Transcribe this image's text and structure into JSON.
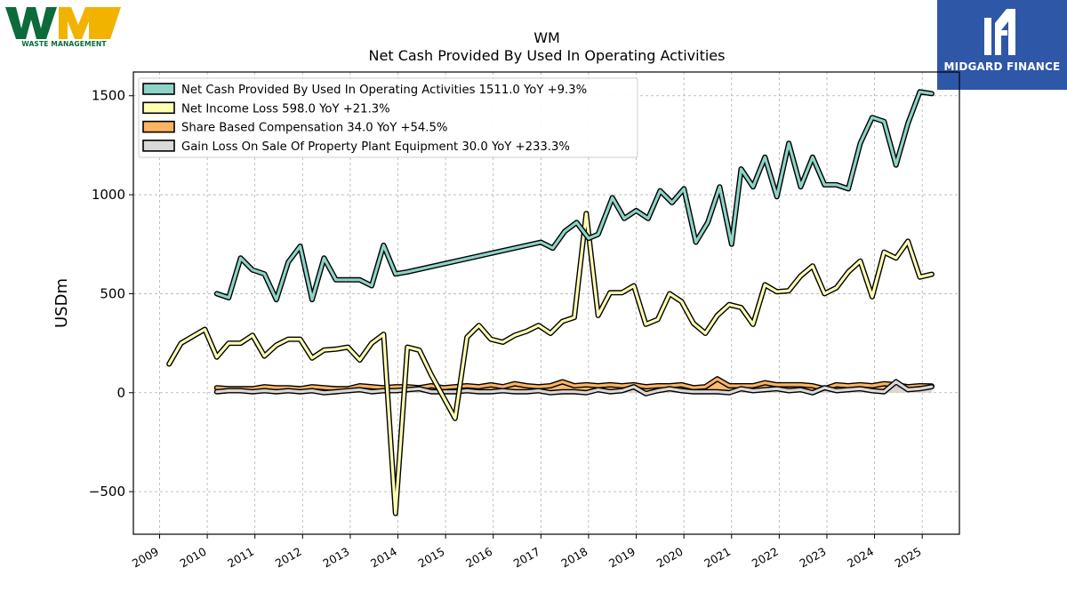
{
  "logos": {
    "left_brand": "WM",
    "left_caption": "WASTE MANAGEMENT",
    "right_caption": "MIDGARD FINANCE"
  },
  "chart_data": {
    "type": "line",
    "title": "WM",
    "subtitle": "Net Cash Provided By Used In Operating Activities",
    "xlabel": "",
    "ylabel": "USDm",
    "xlim": [
      2008.45,
      2025.78
    ],
    "ylim": [
      -715,
      1620
    ],
    "xticks": [
      "2009",
      "2010",
      "2011",
      "2012",
      "2013",
      "2014",
      "2015",
      "2016",
      "2017",
      "2018",
      "2019",
      "2020",
      "2021",
      "2022",
      "2023",
      "2024",
      "2025"
    ],
    "yticks": [
      -500,
      0,
      500,
      1000,
      1500
    ],
    "ytick_labels": [
      "−500",
      "0",
      "500",
      "1000",
      "1500"
    ],
    "grid": true,
    "legend_position": "top-left",
    "legend": [
      "Net Cash Provided By Used In Operating Activities  1511.0 YoY +9.3%",
      "Net Income Loss  598.0 YoY +21.3%",
      "Share Based Compensation  34.0 YoY +54.5%",
      "Gain Loss On Sale Of Property Plant Equipment  30.0 YoY +233.3%"
    ],
    "series": [
      {
        "name": "Net Cash Provided By Used In Operating Activities",
        "color": "#8dd3c7",
        "x": [
          2010.2,
          2010.45,
          2010.7,
          2010.95,
          2011.2,
          2011.45,
          2011.7,
          2011.95,
          2012.2,
          2012.45,
          2012.7,
          2012.95,
          2013.2,
          2013.45,
          2013.7,
          2013.95,
          2014.2,
          2017.0,
          2017.25,
          2017.5,
          2017.75,
          2018.0,
          2018.2,
          2018.5,
          2018.75,
          2019.0,
          2019.25,
          2019.5,
          2019.75,
          2020.0,
          2020.25,
          2020.5,
          2020.75,
          2021.0,
          2021.2,
          2021.45,
          2021.7,
          2021.95,
          2022.2,
          2022.45,
          2022.7,
          2022.95,
          2023.2,
          2023.45,
          2023.7,
          2023.95,
          2024.2,
          2024.45,
          2024.7,
          2024.95,
          2025.2
        ],
        "y": [
          500,
          480,
          680,
          620,
          600,
          470,
          660,
          740,
          470,
          680,
          570,
          570,
          570,
          540,
          745,
          600,
          610,
          760,
          730,
          815,
          860,
          780,
          800,
          985,
          880,
          920,
          880,
          1020,
          960,
          1030,
          760,
          860,
          1040,
          750,
          1130,
          1040,
          1190,
          990,
          1260,
          1040,
          1190,
          1050,
          1050,
          1030,
          1260,
          1390,
          1370,
          1150,
          1360,
          1520,
          1511
        ]
      },
      {
        "name": "Net Income Loss",
        "color": "#ffffb3",
        "x": [
          2009.2,
          2009.45,
          2009.7,
          2009.95,
          2010.2,
          2010.45,
          2010.7,
          2010.95,
          2011.2,
          2011.45,
          2011.7,
          2011.95,
          2012.2,
          2012.45,
          2012.7,
          2012.95,
          2013.2,
          2013.45,
          2013.7,
          2013.95,
          2014.2,
          2014.45,
          2014.7,
          2014.95,
          2015.2,
          2015.45,
          2015.7,
          2015.95,
          2016.2,
          2016.45,
          2016.7,
          2016.95,
          2017.2,
          2017.45,
          2017.7,
          2017.95,
          2018.2,
          2018.45,
          2018.7,
          2018.95,
          2019.2,
          2019.45,
          2019.7,
          2019.95,
          2020.2,
          2020.45,
          2020.7,
          2020.95,
          2021.2,
          2021.45,
          2021.7,
          2021.95,
          2022.2,
          2022.45,
          2022.7,
          2022.95,
          2023.2,
          2023.45,
          2023.7,
          2023.95,
          2024.2,
          2024.45,
          2024.7,
          2024.95,
          2025.2
        ],
        "y": [
          145,
          250,
          285,
          320,
          180,
          250,
          250,
          290,
          185,
          240,
          270,
          270,
          175,
          215,
          220,
          230,
          165,
          250,
          295,
          -610,
          230,
          215,
          90,
          -20,
          -130,
          280,
          340,
          270,
          255,
          290,
          310,
          340,
          300,
          360,
          380,
          905,
          390,
          505,
          505,
          540,
          345,
          370,
          500,
          460,
          350,
          300,
          390,
          445,
          430,
          345,
          545,
          510,
          515,
          590,
          640,
          500,
          530,
          610,
          665,
          485,
          710,
          680,
          765,
          584,
          598
        ]
      },
      {
        "name": "Share Based Compensation",
        "color": "#fdb462",
        "x": [
          2010.2,
          2010.45,
          2010.7,
          2010.95,
          2011.2,
          2011.45,
          2011.7,
          2011.95,
          2012.2,
          2012.45,
          2012.7,
          2012.95,
          2013.2,
          2013.45,
          2013.7,
          2013.95,
          2014.2,
          2014.45,
          2014.7,
          2014.95,
          2015.2,
          2015.45,
          2015.7,
          2015.95,
          2016.2,
          2016.45,
          2016.7,
          2016.95,
          2017.2,
          2017.45,
          2017.7,
          2017.95,
          2018.2,
          2018.45,
          2018.7,
          2018.95,
          2019.2,
          2019.45,
          2019.7,
          2019.95,
          2020.2,
          2020.45,
          2020.7,
          2020.95,
          2021.2,
          2021.45,
          2021.7,
          2021.95,
          2022.2,
          2022.45,
          2022.7,
          2022.95,
          2023.2,
          2023.45,
          2023.7,
          2023.95,
          2024.2,
          2024.45,
          2024.7,
          2024.95,
          2025.2
        ],
        "y": [
          25,
          20,
          20,
          20,
          30,
          25,
          25,
          20,
          30,
          25,
          20,
          20,
          35,
          30,
          25,
          30,
          30,
          25,
          35,
          25,
          30,
          35,
          30,
          40,
          30,
          45,
          35,
          30,
          35,
          55,
          35,
          40,
          35,
          40,
          35,
          40,
          30,
          35,
          35,
          40,
          25,
          30,
          70,
          35,
          35,
          35,
          50,
          40,
          40,
          40,
          35,
          20,
          40,
          35,
          40,
          35,
          45,
          40,
          30,
          35,
          34
        ]
      },
      {
        "name": "Gain Loss On Sale Of Property Plant Equipment",
        "color": "#d9d9d9",
        "x": [
          2010.2,
          2010.45,
          2010.7,
          2010.95,
          2011.2,
          2011.45,
          2011.7,
          2011.95,
          2012.2,
          2012.45,
          2012.7,
          2012.95,
          2013.2,
          2013.45,
          2013.7,
          2013.95,
          2014.2,
          2014.45,
          2014.7,
          2014.95,
          2015.2,
          2015.45,
          2015.7,
          2015.95,
          2016.2,
          2016.45,
          2016.7,
          2016.95,
          2017.2,
          2017.45,
          2017.7,
          2017.95,
          2018.2,
          2018.45,
          2018.7,
          2018.95,
          2019.2,
          2019.45,
          2019.7,
          2019.95,
          2020.2,
          2020.45,
          2020.7,
          2020.95,
          2021.2,
          2021.45,
          2021.7,
          2021.95,
          2022.2,
          2022.45,
          2022.7,
          2022.95,
          2023.2,
          2023.45,
          2023.7,
          2023.95,
          2024.2,
          2024.45,
          2024.7,
          2024.95,
          2025.2
        ],
        "y": [
          5,
          10,
          10,
          5,
          10,
          5,
          10,
          5,
          10,
          0,
          5,
          10,
          15,
          5,
          10,
          10,
          15,
          20,
          5,
          5,
          5,
          10,
          5,
          5,
          10,
          5,
          5,
          10,
          0,
          5,
          5,
          0,
          15,
          5,
          10,
          30,
          -5,
          10,
          20,
          10,
          5,
          5,
          5,
          0,
          20,
          10,
          15,
          20,
          10,
          15,
          0,
          25,
          10,
          15,
          20,
          10,
          5,
          55,
          15,
          20,
          30
        ]
      }
    ]
  }
}
